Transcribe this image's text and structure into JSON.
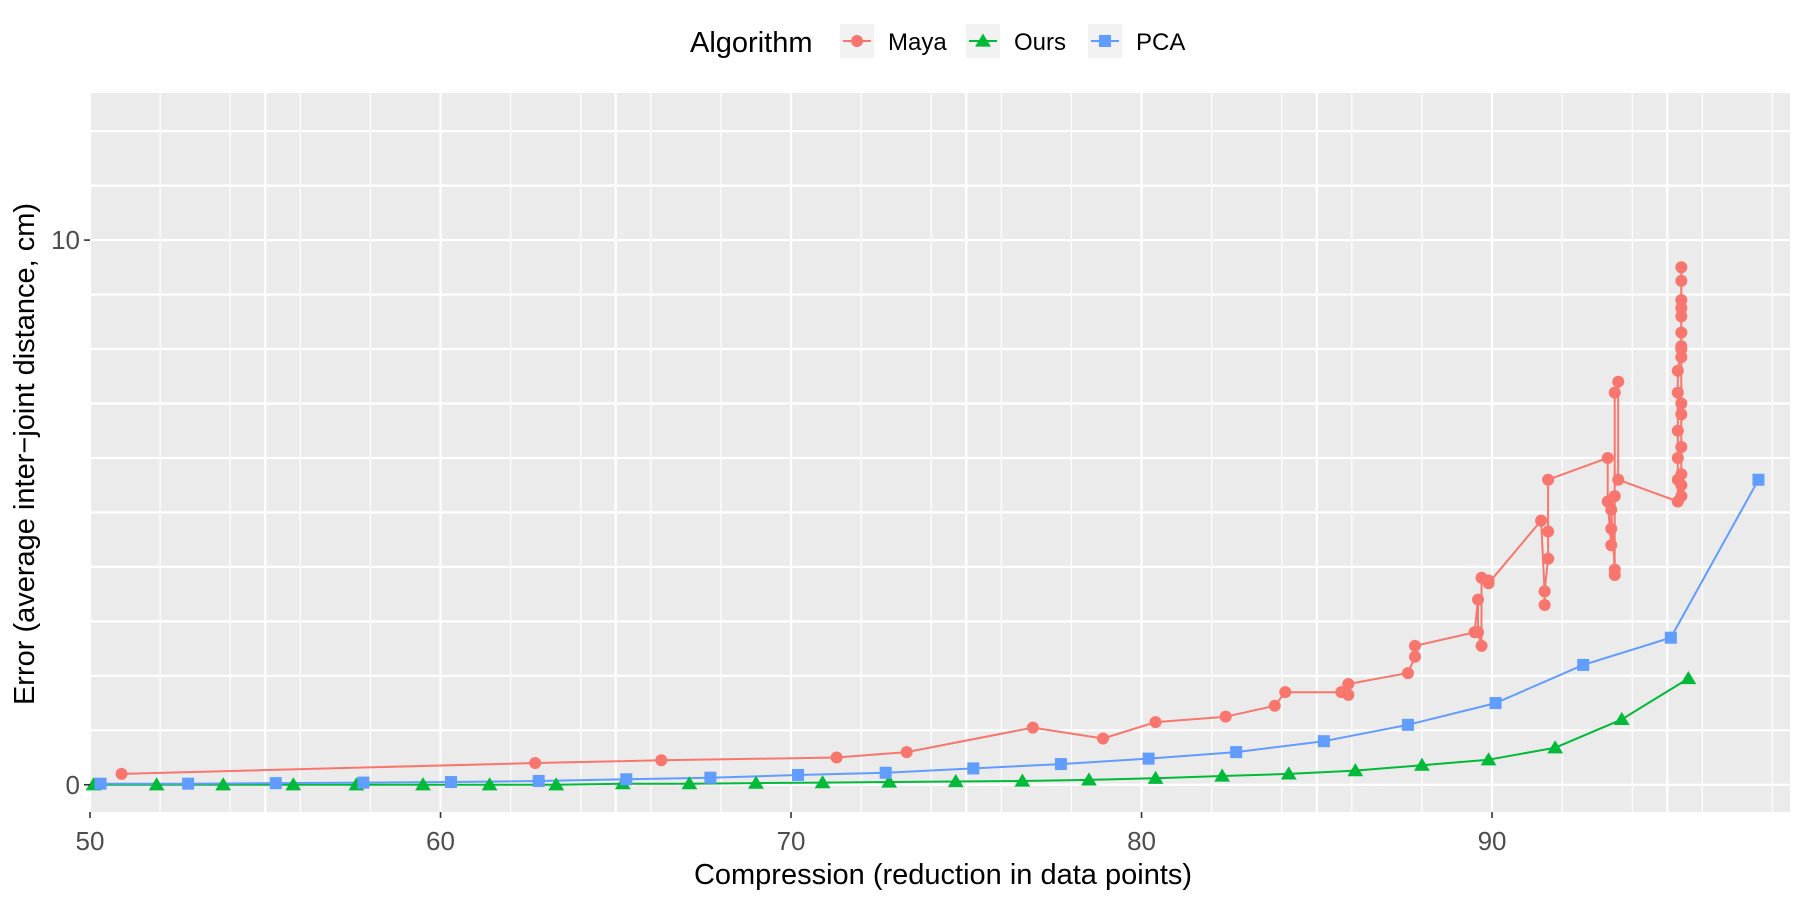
{
  "chart_data": {
    "type": "line",
    "legend": {
      "title": "Algorithm",
      "position": "top"
    },
    "xlabel": "Compression (reduction in data points)",
    "ylabel": "Error (average inter−joint distance, cm)",
    "xlim": [
      50,
      98.5
    ],
    "ylim": [
      -0.5,
      12.7
    ],
    "x_ticks": [
      50,
      60,
      70,
      80,
      90
    ],
    "y_ticks": [
      0,
      10
    ],
    "grid": true,
    "series": [
      {
        "name": "Maya",
        "color": "#F8766D",
        "marker": "circle",
        "x": [
          50.9,
          62.7,
          66.3,
          71.3,
          73.3,
          76.9,
          78.9,
          80.4,
          82.4,
          83.8,
          84.1,
          85.7,
          85.9,
          85.9,
          87.6,
          87.8,
          87.8,
          89.5,
          89.6,
          89.6,
          89.7,
          89.7,
          89.9,
          89.9,
          91.4,
          91.5,
          91.5,
          91.5,
          91.6,
          91.6,
          91.6,
          93.3,
          93.3,
          93.4,
          93.4,
          93.4,
          93.5,
          93.5,
          93.5,
          93.5,
          93.6,
          93.6,
          95.3,
          95.3,
          95.3,
          95.3,
          95.3,
          95.3,
          95.4,
          95.4,
          95.4,
          95.4,
          95.4,
          95.4,
          95.4,
          95.4,
          95.4,
          95.4,
          95.4,
          95.4,
          95.4,
          95.4,
          95.4
        ],
        "y": [
          0.2,
          0.4,
          0.45,
          0.5,
          0.6,
          1.05,
          0.85,
          1.15,
          1.25,
          1.45,
          1.7,
          1.7,
          1.65,
          1.85,
          2.05,
          2.35,
          2.55,
          2.8,
          3.4,
          2.8,
          2.55,
          3.8,
          3.75,
          3.7,
          4.85,
          3.55,
          3.3,
          3.55,
          4.15,
          4.65,
          5.6,
          6.0,
          5.2,
          4.4,
          4.7,
          5.05,
          3.95,
          3.85,
          5.3,
          7.2,
          7.4,
          5.6,
          5.2,
          5.6,
          6.0,
          6.5,
          7.2,
          7.6,
          8.0,
          8.3,
          8.6,
          8.75,
          8.9,
          9.25,
          9.5,
          5.3,
          5.5,
          5.7,
          6.2,
          6.8,
          7.0,
          8.05,
          7.85
        ]
      },
      {
        "name": "Ours",
        "color": "#00BA38",
        "marker": "triangle",
        "x": [
          50.1,
          51.9,
          53.8,
          55.8,
          57.6,
          59.5,
          61.4,
          63.3,
          65.2,
          67.1,
          69.0,
          70.9,
          72.8,
          74.7,
          76.6,
          78.5,
          80.4,
          82.3,
          84.2,
          86.1,
          88.0,
          89.9,
          91.8,
          93.7,
          95.6
        ],
        "y": [
          0.0,
          0.0,
          0.0,
          0.0,
          0.0,
          0.0,
          0.0,
          0.0,
          0.02,
          0.02,
          0.03,
          0.04,
          0.05,
          0.06,
          0.07,
          0.09,
          0.12,
          0.16,
          0.2,
          0.26,
          0.36,
          0.46,
          0.68,
          1.2,
          1.95
        ]
      },
      {
        "name": "PCA",
        "color": "#619CFF",
        "marker": "square",
        "x": [
          50.3,
          52.8,
          55.3,
          57.8,
          60.3,
          62.8,
          65.3,
          67.7,
          70.2,
          72.7,
          75.2,
          77.7,
          80.2,
          82.7,
          85.2,
          87.6,
          90.1,
          92.6,
          95.1,
          97.6
        ],
        "y": [
          0.02,
          0.02,
          0.03,
          0.04,
          0.05,
          0.07,
          0.1,
          0.13,
          0.18,
          0.22,
          0.3,
          0.38,
          0.48,
          0.6,
          0.8,
          1.1,
          1.5,
          2.2,
          2.7,
          5.6
        ]
      }
    ]
  }
}
